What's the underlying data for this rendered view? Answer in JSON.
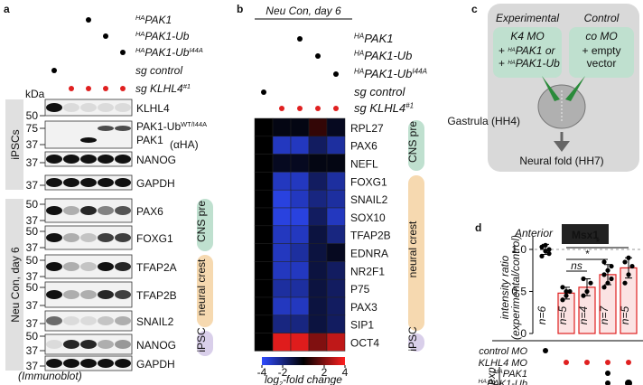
{
  "panel_a": {
    "letter": "a",
    "conditions": [
      {
        "pre": "HA",
        "text": "PAK1"
      },
      {
        "pre": "HA",
        "text": "PAK1-Ub"
      },
      {
        "pre": "HA",
        "text": "PAK1-Ub",
        "post": "I44A"
      },
      {
        "text": "sg control"
      },
      {
        "text": "sg KLHL4",
        "post": "#1",
        "color": "#e02020"
      }
    ],
    "kda_title": "kDa",
    "blots": [
      {
        "labels": [
          {
            "text": "KLHL4"
          }
        ],
        "kda": [
          "50"
        ]
      },
      {
        "labels": [
          {
            "text": "PAK1-Ub",
            "post": "WT/I44A"
          },
          {
            "text": "PAK1"
          },
          {
            "text": "(αHA)"
          }
        ],
        "kda": [
          "75",
          "37"
        ]
      },
      {
        "labels": [
          {
            "text": "NANOG"
          }
        ],
        "kda": [
          "37"
        ]
      },
      {
        "labels": [
          {
            "text": "GAPDH"
          }
        ],
        "kda": [
          "37"
        ]
      },
      {
        "labels": [
          {
            "text": "PAX6"
          }
        ],
        "kda": [
          "50",
          "37"
        ]
      },
      {
        "labels": [
          {
            "text": "FOXG1"
          }
        ],
        "kda": [
          "50",
          "37"
        ]
      },
      {
        "labels": [
          {
            "text": "TFAP2A"
          }
        ],
        "kda": [
          "50",
          "37"
        ]
      },
      {
        "labels": [
          {
            "text": "TFAP2B"
          }
        ],
        "kda": [
          "50",
          "37"
        ]
      },
      {
        "labels": [
          {
            "text": "SNAIL2"
          }
        ],
        "kda": [
          "37"
        ]
      },
      {
        "labels": [
          {
            "text": "NANOG"
          }
        ],
        "kda": [
          "50",
          "37"
        ]
      },
      {
        "labels": [
          {
            "text": "GAPDH"
          }
        ],
        "kda": [
          "37"
        ]
      }
    ],
    "sections": [
      "iPSCs",
      "Neu Con, day 6"
    ],
    "groups": [
      "CNS pre",
      "neural crest",
      "iPSC"
    ],
    "footnote": "(Immunoblot)"
  },
  "panel_b": {
    "letter": "b",
    "title": "Neu Con, day 6",
    "conditions": [
      {
        "pre": "HA",
        "text": "PAK1"
      },
      {
        "pre": "HA",
        "text": "PAK1-Ub"
      },
      {
        "pre": "HA",
        "text": "PAK1-Ub",
        "post": "I44A"
      },
      {
        "text": "sg control"
      },
      {
        "text": "sg KLHL4",
        "post": "#1",
        "color": "#e02020"
      }
    ],
    "genes": [
      "RPL27",
      "PAX6",
      "NEFL",
      "FOXG1",
      "SNAIL2",
      "SOX10",
      "TFAP2B",
      "EDNRA",
      "NR2F1",
      "P75",
      "PAX3",
      "SIP1",
      "OCT4"
    ],
    "values": [
      [
        0,
        -0.3,
        -0.3,
        0.8,
        -0.5
      ],
      [
        0,
        -3,
        -3,
        -1.5,
        -2.5
      ],
      [
        0,
        -0.5,
        -0.5,
        -0.3,
        -0.3
      ],
      [
        0,
        -3,
        -3,
        -1.5,
        -2.5
      ],
      [
        0,
        -3.5,
        -3,
        -2,
        -2.5
      ],
      [
        0,
        -3.5,
        -3.5,
        -1.5,
        -3
      ],
      [
        0,
        -3,
        -3,
        -1,
        -2
      ],
      [
        0,
        -3,
        -2.5,
        -1,
        -0.5
      ],
      [
        0,
        -3,
        -3,
        -1,
        -1.5
      ],
      [
        0,
        -2.5,
        -2.5,
        -1,
        -1.5
      ],
      [
        0,
        -3,
        -3,
        -1,
        -1.5
      ],
      [
        0,
        -2,
        -2,
        -1,
        -1.5
      ],
      [
        0,
        3.5,
        3.5,
        2,
        3
      ]
    ],
    "groups": [
      "CNS pre",
      "neural crest",
      "iPSC"
    ],
    "colorbar": {
      "lim": [
        -4,
        4
      ],
      "ticks": [
        -4,
        -2,
        2,
        4
      ],
      "label": [
        "log",
        "2",
        "-fold change"
      ]
    }
  },
  "panel_c": {
    "letter": "c",
    "experimental": "Experimental",
    "k4": "K4 MO",
    "exp_lines": [
      {
        "text": "+ ",
        "pre": "HA",
        "post": "PAK1 or"
      },
      {
        "text": "+ ",
        "pre": "HA",
        "post": "PAK1-Ub"
      }
    ],
    "control": "Control",
    "co": "co MO",
    "ctrl_lines": [
      "+ empty",
      "vector"
    ],
    "gastrula": "Gastrula (HH4)",
    "neural_fold": "Neural fold (HH7)"
  },
  "panel_d": {
    "letter": "d",
    "region": "Anterior",
    "gene": "Msx1",
    "ylabel": [
      "intensity ratio",
      "(experimental/control)"
    ],
    "ylim": [
      0,
      1.15
    ],
    "yticks": [
      0,
      {
        "value": 0.5,
        "label": "0.5"
      },
      {
        "value": 1,
        "label": "1.0"
      }
    ],
    "values": [
      1,
      0.48,
      0.55,
      0.7,
      0.78
    ],
    "errors": [
      0.06,
      0.07,
      0.1,
      0.12,
      0.12
    ],
    "points": [
      [
        0.92,
        0.98,
        1.0,
        1.03,
        1.05,
        0.95
      ],
      [
        0.4,
        0.45,
        0.5,
        0.55,
        0.5
      ],
      [
        0.45,
        0.5,
        0.6,
        0.65
      ],
      [
        0.55,
        0.6,
        0.65,
        0.7,
        0.75,
        0.8,
        0.85
      ],
      [
        0.6,
        0.7,
        0.8,
        0.85,
        0.9
      ]
    ],
    "n_labels": [
      "n=6",
      "n=5",
      "n=4",
      "n=7",
      "n=5"
    ],
    "significance": [
      "ns",
      "*",
      "*"
    ],
    "rows": [
      {
        "text": "control MO"
      },
      {
        "text": "KLHL4 MO",
        "color": "#e02020"
      },
      {
        "pre": "HA",
        "text": "PAK1"
      },
      {
        "pre": "HA",
        "text": "PAK1-Ub"
      }
    ],
    "exp": "exp"
  }
}
